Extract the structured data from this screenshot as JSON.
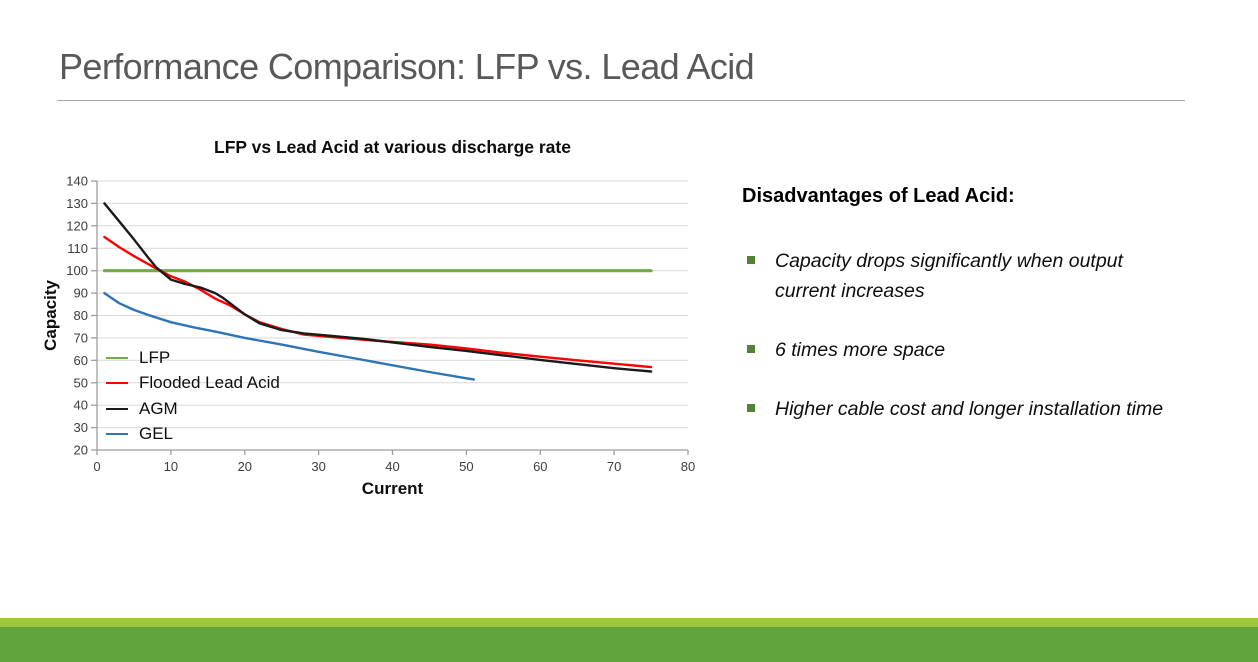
{
  "slide": {
    "title": "Performance Comparison: LFP vs. Lead Acid"
  },
  "right_panel": {
    "heading": "Disadvantages of Lead Acid:",
    "bullets": [
      {
        "text": "Capacity drops significantly when output\ncurrent increases"
      },
      {
        "text": "6 times more space"
      },
      {
        "text": "Higher cable cost and longer installation time"
      }
    ],
    "bullet_color": "#538135"
  },
  "theme": {
    "title_color": "#595959",
    "divider_color": "#a6a6a6",
    "footer_strip_light": "#9cc640",
    "footer_strip_dark": "#61a33c",
    "grid_color": "#d9d9d9",
    "axis_color": "#9e9e9e",
    "tick_label_color": "#3d3d3d"
  },
  "chart_data": {
    "type": "line",
    "title": "LFP vs Lead Acid at various discharge rate",
    "xlabel": "Current",
    "ylabel": "Capacity",
    "xlim": [
      0,
      80
    ],
    "ylim": [
      20,
      140
    ],
    "xticks": [
      0,
      10,
      20,
      30,
      40,
      50,
      60,
      70,
      80
    ],
    "yticks": [
      20,
      30,
      40,
      50,
      60,
      70,
      80,
      90,
      100,
      110,
      120,
      130,
      140
    ],
    "grid": "horizontal",
    "legend_position": "inside bottom-left",
    "series": [
      {
        "name": "LFP",
        "color": "#70ad47",
        "points": [
          [
            1,
            100
          ],
          [
            75,
            100
          ]
        ]
      },
      {
        "name": "Flooded Lead Acid",
        "color": "#ff0000",
        "points": [
          [
            1,
            115
          ],
          [
            3,
            110.5
          ],
          [
            5,
            106.5
          ],
          [
            8,
            101
          ],
          [
            10,
            97.5
          ],
          [
            12,
            95
          ],
          [
            14,
            91.5
          ],
          [
            16,
            87.5
          ],
          [
            18,
            84.5
          ],
          [
            20,
            80.5
          ],
          [
            22,
            77
          ],
          [
            25,
            74
          ],
          [
            28,
            71.5
          ],
          [
            32,
            70.3
          ],
          [
            36,
            69.2
          ],
          [
            40,
            68.2
          ],
          [
            45,
            67
          ],
          [
            50,
            65.3
          ],
          [
            55,
            63.3
          ],
          [
            60,
            61.6
          ],
          [
            65,
            60
          ],
          [
            70,
            58.5
          ],
          [
            75,
            57
          ]
        ]
      },
      {
        "name": "AGM",
        "color": "#1a1a1a",
        "points": [
          [
            1,
            130
          ],
          [
            3,
            122
          ],
          [
            5,
            114
          ],
          [
            7,
            105.5
          ],
          [
            8,
            101.5
          ],
          [
            10,
            96
          ],
          [
            12,
            94
          ],
          [
            14,
            92.5
          ],
          [
            16,
            90
          ],
          [
            17,
            88
          ],
          [
            18,
            85.5
          ],
          [
            20,
            80.5
          ],
          [
            22,
            76.5
          ],
          [
            25,
            73.5
          ],
          [
            28,
            72
          ],
          [
            32,
            70.8
          ],
          [
            36,
            69.6
          ],
          [
            40,
            68
          ],
          [
            45,
            66
          ],
          [
            50,
            64.2
          ],
          [
            55,
            62.2
          ],
          [
            60,
            60.2
          ],
          [
            65,
            58.3
          ],
          [
            70,
            56.5
          ],
          [
            75,
            55
          ]
        ]
      },
      {
        "name": "GEL",
        "color": "#2e75b6",
        "points": [
          [
            1,
            90
          ],
          [
            3,
            85.5
          ],
          [
            5,
            82.5
          ],
          [
            7,
            80.2
          ],
          [
            10,
            77
          ],
          [
            13,
            74.8
          ],
          [
            16,
            72.8
          ],
          [
            20,
            70
          ],
          [
            25,
            67
          ],
          [
            30,
            63.8
          ],
          [
            35,
            60.8
          ],
          [
            40,
            57.8
          ],
          [
            45,
            54.8
          ],
          [
            50,
            52
          ],
          [
            51,
            51.5
          ]
        ]
      }
    ]
  }
}
